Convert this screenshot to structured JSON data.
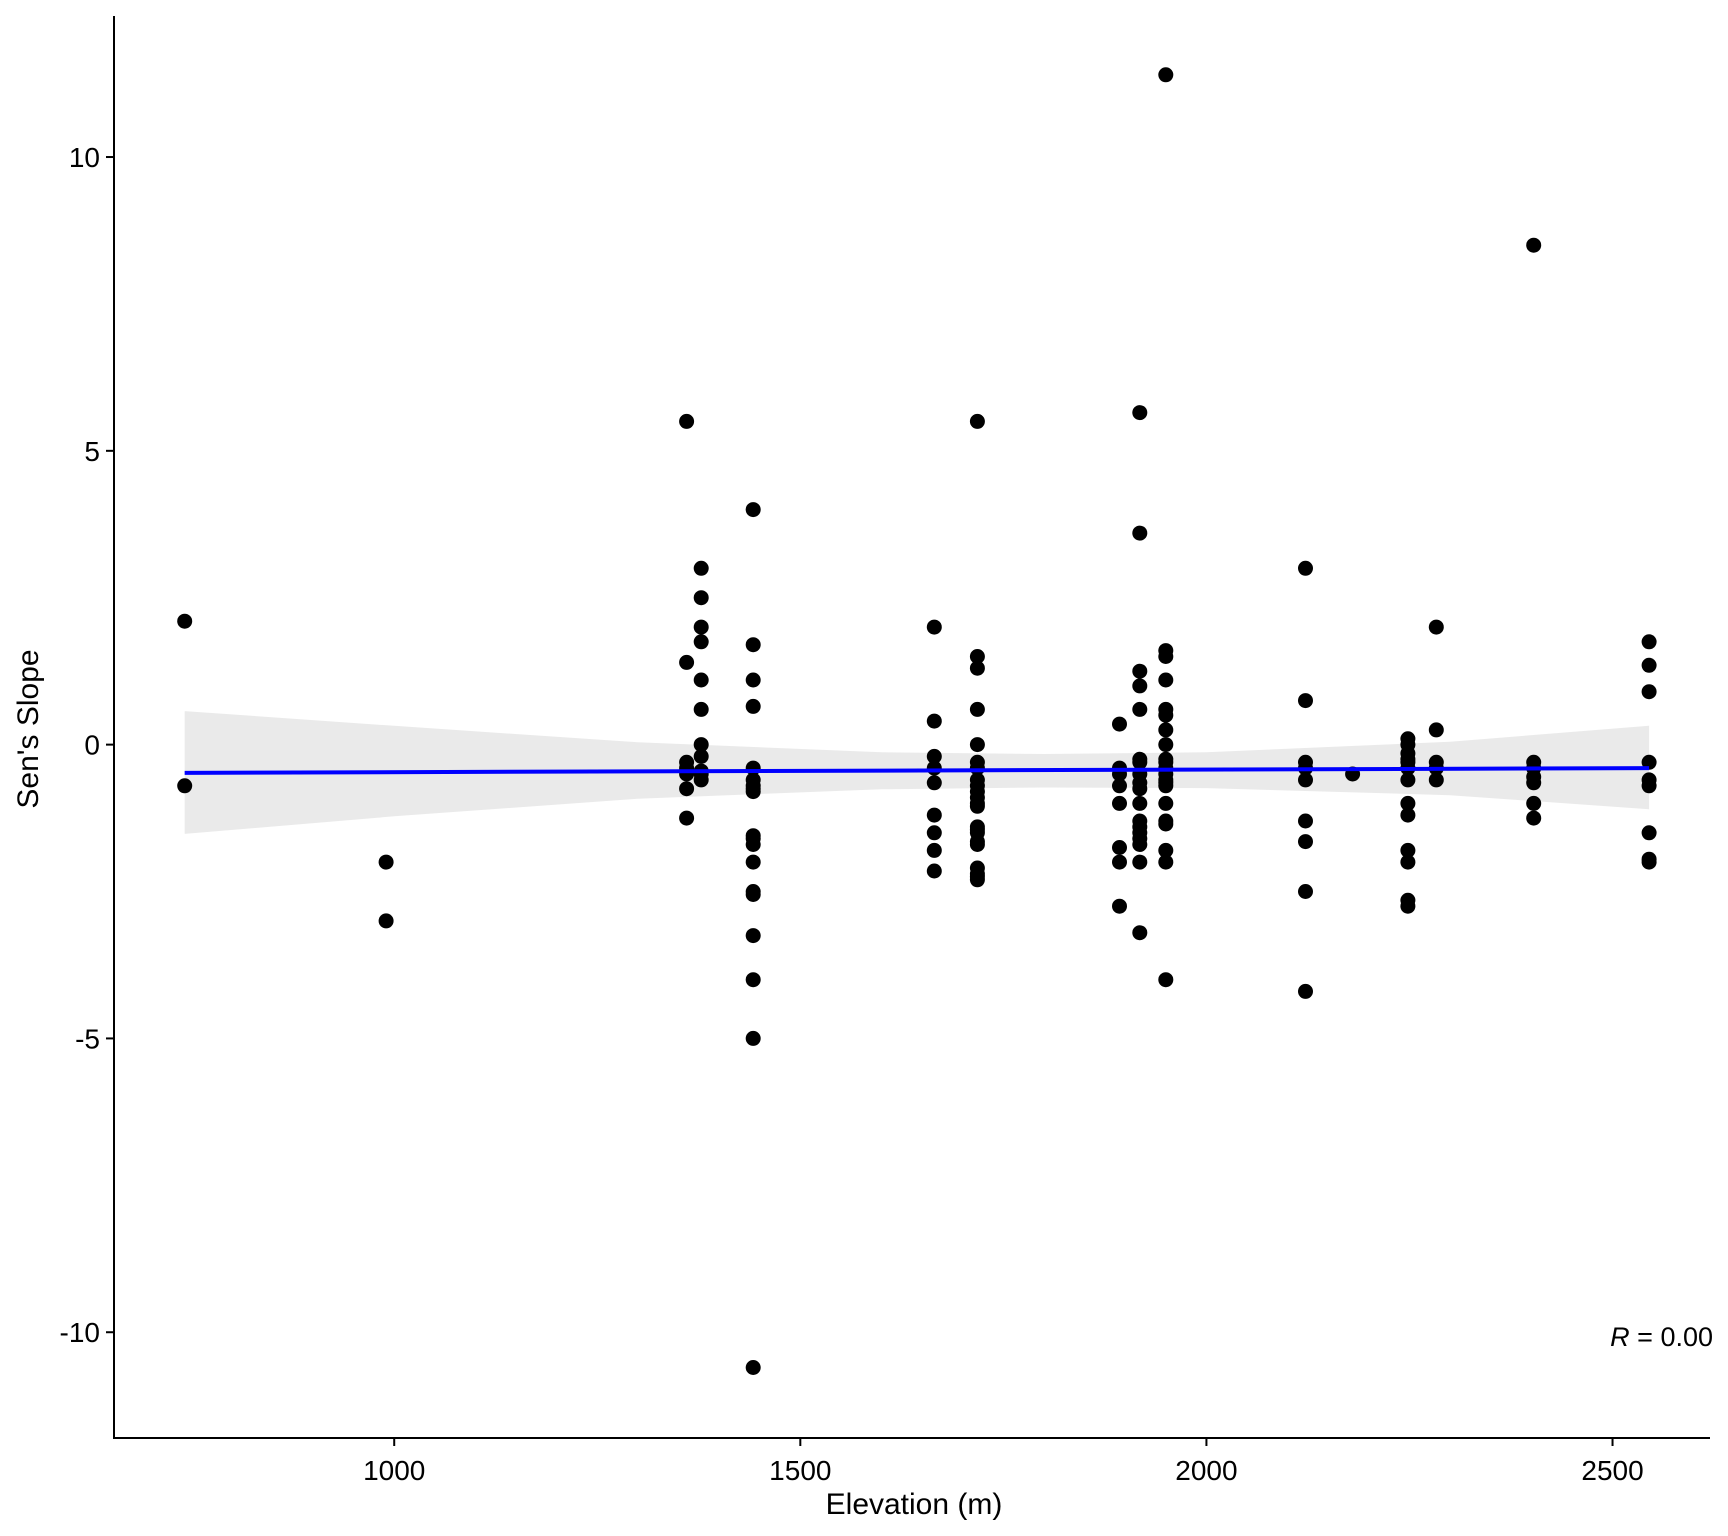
{
  "chart_data": {
    "type": "scatter",
    "title": "",
    "xlabel": "Elevation (m)",
    "ylabel": "Sen's Slope",
    "xlim": [
      655,
      2620
    ],
    "ylim": [
      -11.8,
      12.4
    ],
    "x_ticks": [
      1000,
      1500,
      2000,
      2500
    ],
    "x_tick_labels": [
      "1000",
      "1500",
      "2000",
      "2500"
    ],
    "y_ticks": [
      -10,
      -5,
      0,
      5,
      10
    ],
    "y_tick_labels": [
      "-10",
      "-5",
      "0",
      "5",
      "10"
    ],
    "grid": false,
    "legend": "none",
    "annotation": {
      "prefix": "R",
      "text": " = 0.00"
    },
    "colors": {
      "points": "#000000",
      "fit_line": "#0000ff",
      "confidence_band": "#e8e8e8",
      "axis": "#000000"
    },
    "fit": {
      "method": "linear",
      "x": [
        742,
        2545
      ],
      "y": [
        -0.48,
        -0.4
      ]
    },
    "confidence_band": {
      "x": [
        742,
        1000,
        1300,
        1600,
        1800,
        2000,
        2300,
        2545
      ],
      "lower": [
        -1.52,
        -1.22,
        -0.92,
        -0.76,
        -0.73,
        -0.74,
        -0.86,
        -1.1
      ],
      "upper": [
        0.57,
        0.32,
        0.04,
        -0.13,
        -0.16,
        -0.13,
        0.05,
        0.32
      ]
    },
    "series": [
      {
        "x": [
          742,
          742,
          990,
          990,
          1360,
          1360,
          1360,
          1360,
          1360,
          1360,
          1360,
          1378,
          1378,
          1378,
          1378,
          1378,
          1378,
          1378,
          1378,
          1378,
          1378,
          1378,
          1442,
          1442,
          1442,
          1442,
          1442,
          1442,
          1442,
          1442,
          1442,
          1442,
          1442,
          1442,
          1442,
          1442,
          1442,
          1442,
          1442,
          1442,
          1442,
          1665,
          1665,
          1665,
          1665,
          1665,
          1665,
          1665,
          1665,
          1665,
          1718,
          1718,
          1718,
          1718,
          1718,
          1718,
          1718,
          1718,
          1718,
          1718,
          1718,
          1718,
          1718,
          1718,
          1718,
          1718,
          1718,
          1718,
          1718,
          1718,
          1718,
          1718,
          1893,
          1893,
          1893,
          1893,
          1893,
          1893,
          1893,
          1893,
          1918,
          1918,
          1918,
          1918,
          1918,
          1918,
          1918,
          1918,
          1918,
          1918,
          1918,
          1918,
          1918,
          1918,
          1918,
          1918,
          1918,
          1918,
          1950,
          1950,
          1950,
          1950,
          1950,
          1950,
          1950,
          1950,
          1950,
          1950,
          1950,
          1950,
          1950,
          1950,
          1950,
          1950,
          1950,
          1950,
          1950,
          1950,
          1950,
          2122,
          2122,
          2122,
          2122,
          2122,
          2122,
          2122,
          2122,
          2122,
          2180,
          2248,
          2248,
          2248,
          2248,
          2248,
          2248,
          2248,
          2248,
          2248,
          2248,
          2248,
          2248,
          2248,
          2283,
          2283,
          2283,
          2283,
          2283,
          2403,
          2403,
          2403,
          2403,
          2403,
          2403,
          2403,
          2545,
          2545,
          2545,
          2545,
          2545,
          2545,
          2545,
          2545,
          2545
        ],
        "y": [
          2.1,
          -0.7,
          -2.0,
          -3.0,
          5.5,
          1.4,
          -0.3,
          -0.4,
          -0.5,
          -0.75,
          -1.25,
          3.0,
          2.5,
          2.0,
          1.75,
          1.1,
          0.6,
          0.0,
          -0.2,
          -0.45,
          -0.5,
          -0.6,
          4.0,
          1.7,
          1.1,
          0.65,
          -0.4,
          -0.6,
          -0.7,
          -0.75,
          -0.8,
          -1.55,
          -1.6,
          -1.7,
          -2.0,
          -2.5,
          -2.55,
          -3.25,
          -4.0,
          -5.0,
          -10.6,
          2.0,
          0.4,
          -0.2,
          -0.4,
          -0.65,
          -1.2,
          -1.5,
          -1.8,
          -2.15,
          5.5,
          1.5,
          1.3,
          0.6,
          0.0,
          -0.3,
          -0.4,
          -0.6,
          -0.7,
          -0.8,
          -0.9,
          -1.0,
          -1.05,
          -1.4,
          -1.5,
          -1.65,
          -1.7,
          -2.1,
          -2.2,
          -2.25,
          -2.3,
          -1.45,
          0.35,
          -0.4,
          -0.7,
          -1.0,
          -1.75,
          -2.0,
          -2.75,
          -0.5,
          5.65,
          3.6,
          1.25,
          1.0,
          0.6,
          -0.25,
          -0.3,
          -0.5,
          -0.65,
          -0.75,
          -1.0,
          -1.3,
          -1.4,
          -1.5,
          -1.6,
          -1.7,
          -2.0,
          -3.2,
          11.4,
          1.6,
          1.5,
          1.1,
          0.6,
          0.5,
          0.25,
          0.0,
          -0.3,
          -0.4,
          -0.5,
          -0.6,
          -0.7,
          -1.0,
          -1.3,
          -1.35,
          -1.8,
          -2.0,
          -4.0,
          -0.25,
          -0.65,
          3.0,
          0.75,
          -0.3,
          -0.4,
          -0.6,
          -1.3,
          -1.65,
          -2.5,
          -4.2,
          -0.5,
          0.1,
          0.0,
          -0.15,
          -0.25,
          -0.4,
          -0.6,
          -1.0,
          -1.2,
          -1.8,
          -2.0,
          -2.65,
          -2.75,
          -0.3,
          2.0,
          0.25,
          -0.3,
          -0.4,
          -0.6,
          8.5,
          -0.3,
          -0.4,
          -0.55,
          -0.65,
          -1.0,
          -1.25,
          1.75,
          1.35,
          0.9,
          -0.3,
          -0.6,
          -0.7,
          -1.5,
          -1.95,
          -2.0
        ]
      }
    ]
  }
}
